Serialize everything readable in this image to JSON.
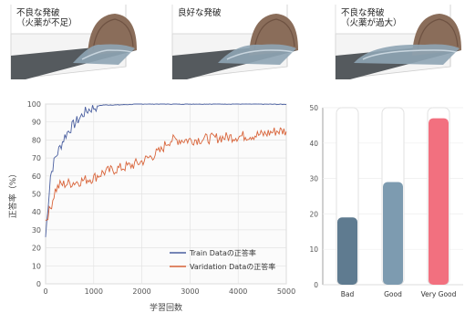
{
  "thumbnails": [
    {
      "label": "不良な発破\n（火薬が不足）",
      "state": "insufficient"
    },
    {
      "label": "良好な発破",
      "state": "good"
    },
    {
      "label": "不良な発破\n（火薬が過大）",
      "state": "excessive"
    }
  ],
  "chart_data": [
    {
      "type": "line",
      "xlabel": "学習回数",
      "ylabel": "正答率（%）",
      "xlim": [
        0,
        5000
      ],
      "ylim": [
        0,
        100
      ],
      "xticks": [
        "0",
        "1000",
        "2000",
        "3000",
        "4000",
        "5000"
      ],
      "yticks": [
        "0",
        "10",
        "20",
        "30",
        "40",
        "50",
        "60",
        "70",
        "80",
        "90",
        "100"
      ],
      "grid": true,
      "legend_position": "bottom-right",
      "series": [
        {
          "name": "Train Dataの正答率",
          "color": "#4a5fa0",
          "x": [
            0,
            100,
            200,
            300,
            400,
            500,
            600,
            700,
            800,
            900,
            1000,
            1100,
            1200,
            1500,
            2000,
            3000,
            4000,
            5000
          ],
          "y": [
            26,
            60,
            70,
            76,
            82,
            86,
            89,
            92,
            95,
            97,
            98,
            99,
            99.5,
            99.5,
            100,
            100,
            100,
            99.8
          ]
        },
        {
          "name": "Varidation Dataの正答率",
          "color": "#d9653b",
          "x": [
            0,
            100,
            200,
            300,
            500,
            700,
            1000,
            1200,
            1500,
            1800,
            2000,
            2200,
            2400,
            2500,
            2600,
            2800,
            3000,
            3500,
            4000,
            4500,
            4800,
            5000
          ],
          "y": [
            35,
            42,
            52,
            55,
            56,
            57,
            59,
            62,
            64,
            66,
            68,
            71,
            74,
            78,
            80,
            80,
            80,
            81,
            82,
            83,
            85,
            85
          ]
        }
      ]
    },
    {
      "type": "bar",
      "categories": [
        "Bad",
        "Good",
        "Very Good"
      ],
      "values": [
        19,
        29,
        47
      ],
      "ylim": [
        0,
        50
      ],
      "yticks": [
        "0",
        "10",
        "20",
        "30",
        "40",
        "50"
      ],
      "colors": [
        "#5f7b90",
        "#7d9bb0",
        "#f2707f"
      ],
      "grid": true
    }
  ]
}
